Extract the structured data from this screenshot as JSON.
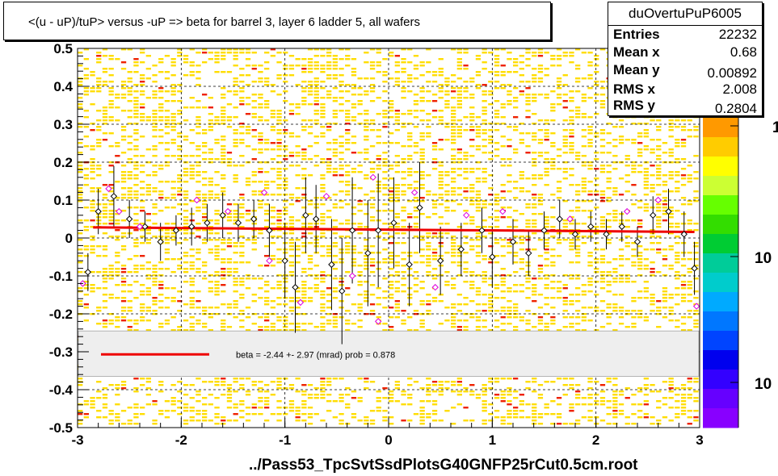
{
  "title": "<(u - uP)/tuP> versus  -uP => beta for barrel 3, layer 6 ladder 5, all wafers",
  "stats": {
    "name": "duOvertuPuP6005",
    "rows": [
      {
        "label": "Entries",
        "value": "22232"
      },
      {
        "label": "Mean x",
        "value": "0.68"
      },
      {
        "label": "Mean y",
        "value": "0.00892"
      },
      {
        "label": "RMS x",
        "value": "2.008"
      },
      {
        "label": "RMS y",
        "value": "0.2804"
      }
    ]
  },
  "x_title": "../Pass53_TpcSvtSsdPlotsG40GNFP25rCut0.5cm.root",
  "fit_legend": "beta =   -2.44 +-  2.97 (mrad) prob = 0.878",
  "palette_labels": [
    "1",
    "10",
    "10"
  ],
  "colors": {
    "fit_line": "#ee0000",
    "profile_black": "#000000",
    "profile_magenta": "#dd00dd",
    "cell_yellow": "#ffdd00",
    "cell_red": "#ee2200",
    "legend_fill": "#eeeeee"
  },
  "chart_data": {
    "type": "scatter",
    "xlim": [
      -3,
      3
    ],
    "ylim": [
      -0.5,
      0.5
    ],
    "x_ticks": [
      -3,
      -2,
      -1,
      0,
      1,
      2,
      3
    ],
    "x_tick_labels": [
      "-3",
      "-2",
      "-1",
      "0",
      "1",
      "2",
      "3"
    ],
    "y_ticks": [
      -0.5,
      -0.4,
      -0.3,
      -0.2,
      -0.1,
      0,
      0.1,
      0.2,
      0.3,
      0.4,
      0.5
    ],
    "y_tick_labels": [
      "-0.5",
      "-0.4",
      "-0.3",
      "-0.2",
      "-0.1",
      "0",
      "0.1",
      "0.2",
      "0.3",
      "0.4",
      "0.5"
    ],
    "grid": true,
    "fit_line": {
      "x": [
        -2.85,
        2.95
      ],
      "y": [
        0.028,
        0.016
      ]
    },
    "series": [
      {
        "marker": "open-diamond-black",
        "points": [
          {
            "x": -2.9,
            "y": -0.09,
            "err": 0.05
          },
          {
            "x": -2.8,
            "y": 0.07,
            "err": 0.06
          },
          {
            "x": -2.65,
            "y": 0.11,
            "err": 0.08
          },
          {
            "x": -2.5,
            "y": 0.05,
            "err": 0.05
          },
          {
            "x": -2.35,
            "y": 0.03,
            "err": 0.04
          },
          {
            "x": -2.2,
            "y": -0.01,
            "err": 0.05
          },
          {
            "x": -2.05,
            "y": 0.02,
            "err": 0.04
          },
          {
            "x": -1.9,
            "y": 0.03,
            "err": 0.05
          },
          {
            "x": -1.75,
            "y": 0.04,
            "err": 0.05
          },
          {
            "x": -1.6,
            "y": 0.06,
            "err": 0.06
          },
          {
            "x": -1.45,
            "y": 0.04,
            "err": 0.05
          },
          {
            "x": -1.3,
            "y": 0.05,
            "err": 0.05
          },
          {
            "x": -1.15,
            "y": 0.02,
            "err": 0.07
          },
          {
            "x": -1.0,
            "y": -0.06,
            "err": 0.1
          },
          {
            "x": -0.9,
            "y": -0.13,
            "err": 0.12
          },
          {
            "x": -0.8,
            "y": 0.06,
            "err": 0.1
          },
          {
            "x": -0.7,
            "y": 0.05,
            "err": 0.09
          },
          {
            "x": -0.55,
            "y": -0.07,
            "err": 0.12
          },
          {
            "x": -0.45,
            "y": -0.14,
            "err": 0.14
          },
          {
            "x": -0.35,
            "y": 0.02,
            "err": 0.14
          },
          {
            "x": -0.2,
            "y": -0.04,
            "err": 0.14
          },
          {
            "x": -0.1,
            "y": 0.02,
            "err": 0.15
          },
          {
            "x": 0.05,
            "y": 0.04,
            "err": 0.12
          },
          {
            "x": 0.2,
            "y": -0.07,
            "err": 0.11
          },
          {
            "x": 0.3,
            "y": 0.08,
            "err": 0.12
          },
          {
            "x": 0.5,
            "y": -0.06,
            "err": 0.09
          },
          {
            "x": 0.7,
            "y": -0.03,
            "err": 0.07
          },
          {
            "x": 0.9,
            "y": 0.02,
            "err": 0.06
          },
          {
            "x": 1.0,
            "y": -0.05,
            "err": 0.08
          },
          {
            "x": 1.2,
            "y": -0.01,
            "err": 0.06
          },
          {
            "x": 1.35,
            "y": -0.04,
            "err": 0.06
          },
          {
            "x": 1.5,
            "y": 0.02,
            "err": 0.05
          },
          {
            "x": 1.65,
            "y": 0.05,
            "err": 0.05
          },
          {
            "x": 1.8,
            "y": 0.01,
            "err": 0.04
          },
          {
            "x": 1.95,
            "y": 0.03,
            "err": 0.04
          },
          {
            "x": 2.1,
            "y": 0.01,
            "err": 0.04
          },
          {
            "x": 2.25,
            "y": 0.03,
            "err": 0.04
          },
          {
            "x": 2.4,
            "y": -0.01,
            "err": 0.04
          },
          {
            "x": 2.55,
            "y": 0.06,
            "err": 0.05
          },
          {
            "x": 2.7,
            "y": 0.07,
            "err": 0.06
          },
          {
            "x": 2.85,
            "y": 0.01,
            "err": 0.06
          },
          {
            "x": 2.95,
            "y": -0.08,
            "err": 0.07
          }
        ]
      },
      {
        "marker": "open-diamond-magenta",
        "points": [
          {
            "x": -2.95,
            "y": -0.12,
            "err": 0.0
          },
          {
            "x": -2.7,
            "y": 0.13,
            "err": 0.0
          },
          {
            "x": -2.6,
            "y": 0.07,
            "err": 0.0
          },
          {
            "x": -2.4,
            "y": 0.03,
            "err": 0.0
          },
          {
            "x": -1.85,
            "y": 0.1,
            "err": 0.0
          },
          {
            "x": -1.55,
            "y": 0.07,
            "err": 0.0
          },
          {
            "x": -1.2,
            "y": 0.12,
            "err": 0.0
          },
          {
            "x": -1.15,
            "y": -0.06,
            "err": 0.0
          },
          {
            "x": -0.85,
            "y": -0.17,
            "err": 0.0
          },
          {
            "x": -0.6,
            "y": 0.11,
            "err": 0.0
          },
          {
            "x": -0.35,
            "y": -0.1,
            "err": 0.0
          },
          {
            "x": -0.15,
            "y": 0.16,
            "err": 0.0
          },
          {
            "x": -0.1,
            "y": -0.22,
            "err": 0.0
          },
          {
            "x": 0.25,
            "y": 0.12,
            "err": 0.0
          },
          {
            "x": 0.45,
            "y": -0.13,
            "err": 0.0
          },
          {
            "x": 0.75,
            "y": 0.06,
            "err": 0.0
          },
          {
            "x": 1.1,
            "y": 0.07,
            "err": 0.0
          },
          {
            "x": 1.75,
            "y": 0.05,
            "err": 0.0
          },
          {
            "x": 2.3,
            "y": 0.07,
            "err": 0.0
          },
          {
            "x": 2.6,
            "y": 0.1,
            "err": 0.0
          },
          {
            "x": 2.97,
            "y": -0.18,
            "err": 0.0
          }
        ]
      }
    ],
    "palette": [
      "#ff9900",
      "#ffcc00",
      "#ffff00",
      "#ccff33",
      "#66ff00",
      "#33dd00",
      "#00cc33",
      "#00cc99",
      "#00cccc",
      "#00aaff",
      "#0077ff",
      "#0044ff",
      "#0000ee",
      "#3300ff",
      "#6600ff",
      "#8800ff"
    ]
  }
}
